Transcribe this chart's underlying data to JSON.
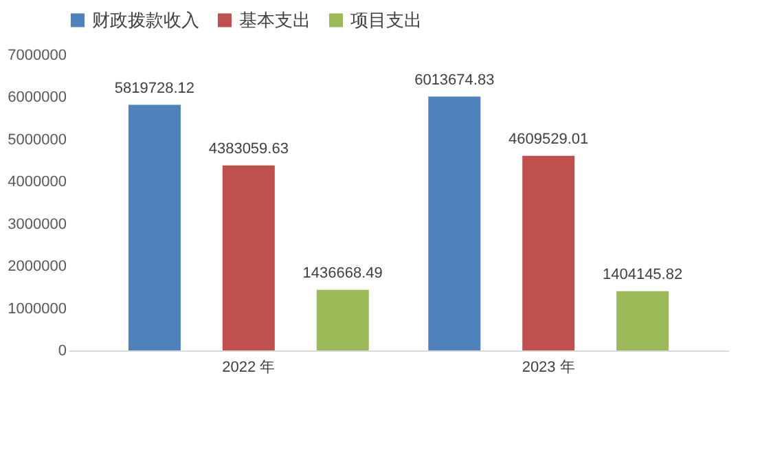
{
  "chart_data": {
    "type": "bar",
    "categories": [
      "2022 年",
      "2023 年"
    ],
    "series": [
      {
        "name": "财政拨款收入",
        "color": "#4f81bd",
        "values": [
          5819728.12,
          6013674.83
        ]
      },
      {
        "name": "基本支出",
        "color": "#c0504d",
        "values": [
          4383059.63,
          4609529.01
        ]
      },
      {
        "name": "项目支出",
        "color": "#9bbb59",
        "values": [
          1436668.49,
          1404145.82
        ]
      }
    ],
    "ylim": [
      0,
      7000000
    ],
    "yticks": [
      0,
      1000000,
      2000000,
      3000000,
      4000000,
      5000000,
      6000000,
      7000000
    ],
    "grid": false,
    "legend": "top",
    "data_labels": true
  }
}
